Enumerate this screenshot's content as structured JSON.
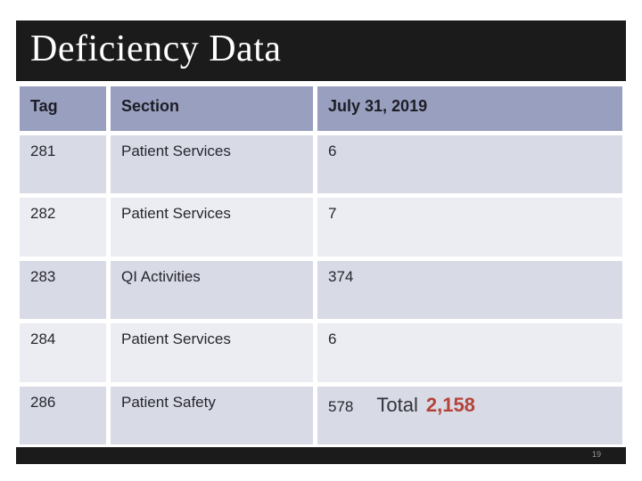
{
  "slide": {
    "title": "Deficiency Data",
    "page_number": "19"
  },
  "table": {
    "columns": [
      "Tag",
      "Section",
      "July 31, 2019"
    ],
    "rows": [
      {
        "tag": "281",
        "section": "Patient Services",
        "value": "6"
      },
      {
        "tag": "282",
        "section": "Patient Services",
        "value": "7"
      },
      {
        "tag": "283",
        "section": "QI Activities",
        "value": "374"
      },
      {
        "tag": "284",
        "section": "Patient Services",
        "value": "6"
      },
      {
        "tag": "286",
        "section": "Patient Safety",
        "value": "578",
        "total_label": "Total",
        "total_value": "2,158"
      }
    ]
  },
  "colors": {
    "bar_bg": "#1c1b1b",
    "header_bg": "#99a0bf",
    "row_dark": "#d8dae5",
    "row_light": "#ecedf2",
    "header_text": "#1d1d26",
    "body_text": "#26262e",
    "total_text": "#33333b",
    "total_red": "#b5433a",
    "page_num": "#9a9a9a"
  }
}
